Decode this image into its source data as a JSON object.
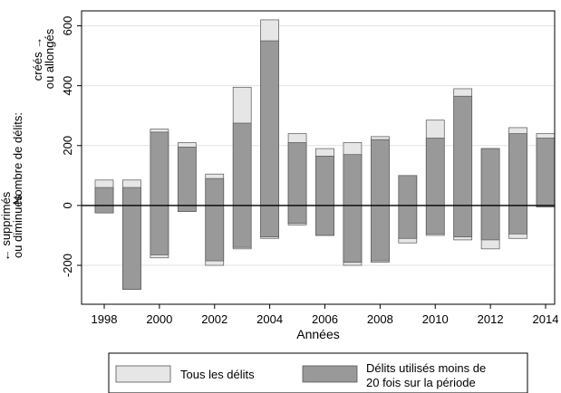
{
  "chart_data": {
    "type": "bar",
    "x": [
      1998,
      1999,
      2000,
      2001,
      2002,
      2003,
      2004,
      2005,
      2006,
      2007,
      2008,
      2009,
      2010,
      2011,
      2012,
      2013,
      2014
    ],
    "x_ticks": [
      "1998",
      "2000",
      "2002",
      "2004",
      "2006",
      "2008",
      "2010",
      "2012",
      "2014"
    ],
    "xlabel": "Années",
    "ylabel_lines": [
      "← supprimés",
      "ou diminués",
      "Nombre de délits:",
      "créés →",
      "ou allongés"
    ],
    "y_ticks": [
      "-200",
      "0",
      "200",
      "400",
      "600"
    ],
    "ylim": [
      -330,
      650
    ],
    "series": [
      {
        "name": "Tous les délits",
        "color": "#e6e6e6",
        "positive": [
          85,
          85,
          255,
          210,
          105,
          395,
          620,
          240,
          190,
          210,
          230,
          100,
          285,
          390,
          190,
          260,
          240
        ],
        "negative": [
          -25,
          -280,
          -175,
          -20,
          -200,
          -145,
          -110,
          -65,
          -100,
          -200,
          -190,
          -125,
          -100,
          -115,
          -145,
          -110,
          -5
        ]
      },
      {
        "name": "Délits utilisés moins de 20 fois sur la période",
        "legend_lines": [
          "Délits utilisés moins de",
          "20 fois sur la période"
        ],
        "color": "#999999",
        "positive": [
          60,
          60,
          245,
          195,
          90,
          275,
          550,
          210,
          165,
          170,
          220,
          100,
          225,
          365,
          190,
          240,
          225
        ],
        "negative": [
          -25,
          -280,
          -165,
          -20,
          -185,
          -140,
          -105,
          -60,
          -100,
          -190,
          -185,
          -110,
          -95,
          -105,
          -115,
          -95,
          -5
        ]
      }
    ],
    "grid": true,
    "legend_position": "bottom"
  }
}
